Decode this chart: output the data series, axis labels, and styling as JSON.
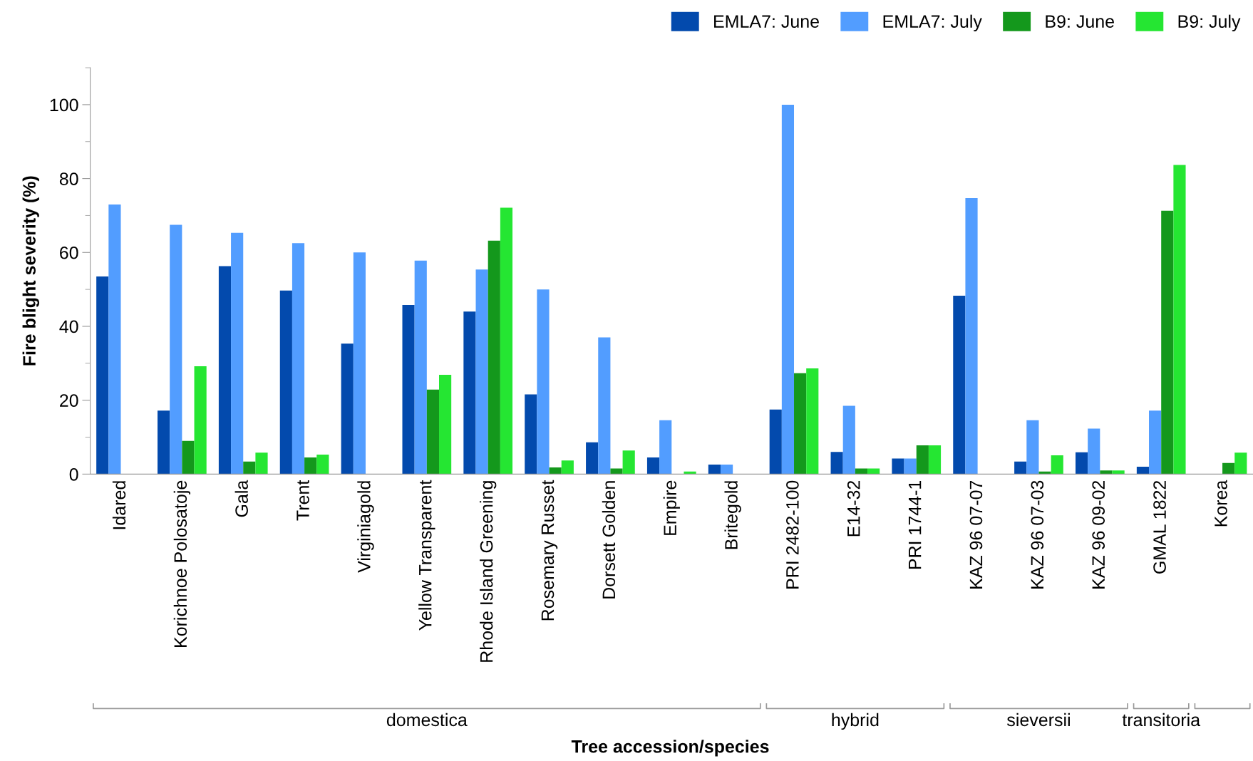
{
  "chart_data": {
    "type": "bar",
    "xlabel": "Tree accession/species",
    "ylabel": "Fire blight severity (%)",
    "categories": [
      "Idared",
      "Korichnoe Polosatoje",
      "Gala",
      "Trent",
      "Virginiagold",
      "Yellow Transparent",
      "Rhode Island Greening",
      "Rosemary Russet",
      "Dorsett Golden",
      "Empire",
      "Britegold",
      "PRI 2482-100",
      "E14-32",
      "PRI 1744-1",
      "KAZ 96 07-07",
      "KAZ 96 07-03",
      "KAZ 96 09-02",
      "GMAL 1822",
      "Korea"
    ],
    "series": [
      {
        "name": "EMLA7: June",
        "color": "#034aad",
        "values": [
          53.5,
          17.2,
          56.3,
          49.7,
          35.3,
          45.8,
          44,
          21.6,
          8.6,
          4.5,
          2.6,
          17.5,
          6,
          4.2,
          48.3,
          3.4,
          5.9,
          2,
          0
        ]
      },
      {
        "name": "EMLA7: July",
        "color": "#529dff",
        "values": [
          73,
          67.5,
          65.3,
          62.5,
          60,
          57.8,
          55.4,
          50,
          37,
          14.6,
          2.6,
          100,
          18.5,
          4.2,
          74.7,
          14.6,
          12.3,
          17.2,
          0
        ]
      },
      {
        "name": "B9: June",
        "color": "#14981c",
        "values": [
          0,
          9,
          3.4,
          4.5,
          0,
          22.9,
          63.2,
          1.8,
          1.5,
          0,
          0,
          27.3,
          1.5,
          7.8,
          0,
          0.7,
          1,
          71.3,
          3
        ]
      },
      {
        "name": "B9: July",
        "color": "#25e632",
        "values": [
          0,
          29.2,
          5.8,
          5.3,
          0,
          26.9,
          72.1,
          3.7,
          6.4,
          0.7,
          0,
          28.6,
          1.5,
          7.8,
          0,
          5.1,
          1,
          83.7,
          5.8
        ]
      }
    ],
    "annotations": [
      "domestica",
      "hybrid",
      "sieversii",
      "transitoria"
    ],
    "ylim": [
      0,
      110
    ],
    "yticks": [
      0,
      20,
      40,
      60,
      80,
      100
    ],
    "grid": false,
    "legend": "top right"
  }
}
